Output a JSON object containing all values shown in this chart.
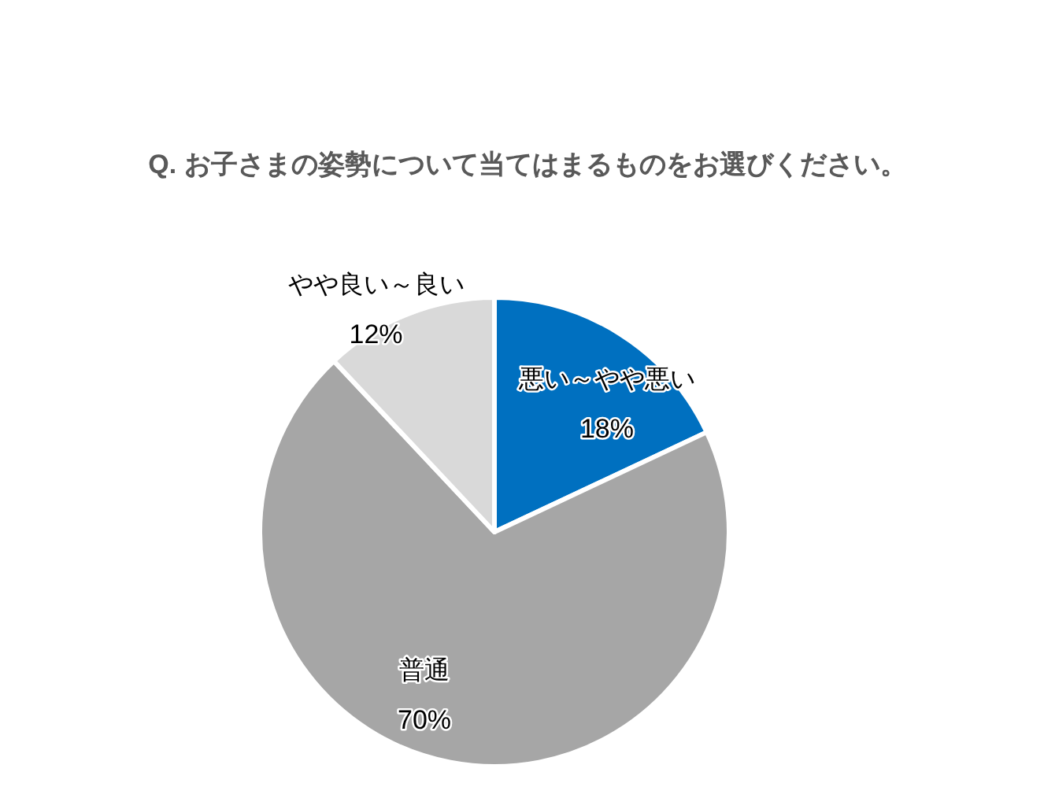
{
  "chart_data": {
    "type": "pie",
    "title": "Q. お子さまの姿勢について当てはまるものをお選びください。",
    "categories": [
      "悪い～やや悪い",
      "普通",
      "やや良い～良い"
    ],
    "values": [
      18,
      70,
      12
    ],
    "colors": [
      "#0070c0",
      "#a6a6a6",
      "#d9d9d9"
    ],
    "value_labels": [
      "18%",
      "70%",
      "12%"
    ]
  }
}
